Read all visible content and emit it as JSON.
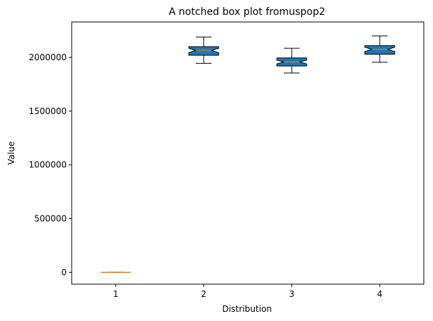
{
  "chart_data": {
    "type": "box",
    "title": "A notched box plot fromuspop2",
    "xlabel": "Distribution",
    "ylabel": "Value",
    "categories": [
      "1",
      "2",
      "3",
      "4"
    ],
    "ylim": [
      -110000,
      2330000
    ],
    "yticks": [
      0,
      500000,
      1000000,
      1500000,
      2000000
    ],
    "ytick_labels": [
      "0",
      "500000",
      "1000000",
      "1500000",
      "2000000"
    ],
    "grid": false,
    "box_color": "#1f77b4",
    "median_color": "#ff7f0e",
    "boxes": [
      {
        "label": "1",
        "whisker_low": 0,
        "q1": 0,
        "notch_low": 0,
        "median": 0,
        "notch_high": 0,
        "q3": 0,
        "whisker_high": 0,
        "filled": false
      },
      {
        "label": "2",
        "whisker_low": 1945000,
        "q1": 2020000,
        "notch_low": 2045000,
        "median": 2065000,
        "notch_high": 2085000,
        "q3": 2100000,
        "whisker_high": 2190000,
        "filled": true
      },
      {
        "label": "3",
        "whisker_low": 1855000,
        "q1": 1920000,
        "notch_low": 1940000,
        "median": 1958000,
        "notch_high": 1975000,
        "q3": 1995000,
        "whisker_high": 2085000,
        "filled": true
      },
      {
        "label": "4",
        "whisker_low": 1955000,
        "q1": 2030000,
        "notch_low": 2055000,
        "median": 2075000,
        "notch_high": 2095000,
        "q3": 2110000,
        "whisker_high": 2200000,
        "filled": true
      }
    ]
  }
}
